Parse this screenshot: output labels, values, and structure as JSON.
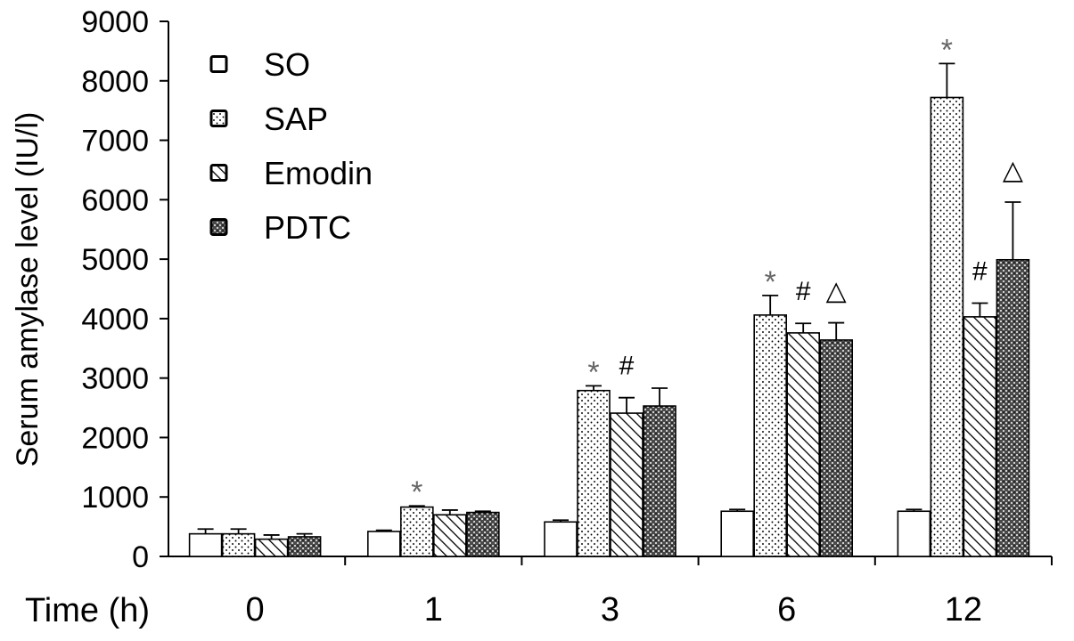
{
  "chart_data": {
    "type": "bar",
    "title": "",
    "xlabel": "Time (h)",
    "ylabel": "Serum amylase level (IU/l)",
    "ylim": [
      0,
      9000
    ],
    "yticks": [
      0,
      1000,
      2000,
      3000,
      4000,
      5000,
      6000,
      7000,
      8000,
      9000
    ],
    "categories": [
      "0",
      "1",
      "3",
      "6",
      "12"
    ],
    "grid": false,
    "legend_position": "top-left",
    "series": [
      {
        "name": "SO",
        "pattern": "plain",
        "values": [
          380,
          420,
          580,
          760,
          760
        ],
        "errors": [
          80,
          20,
          30,
          30,
          30
        ]
      },
      {
        "name": "SAP",
        "pattern": "dots",
        "values": [
          380,
          830,
          2790,
          4060,
          7720
        ],
        "errors": [
          80,
          20,
          80,
          330,
          570
        ]
      },
      {
        "name": "Emodin",
        "pattern": "hatch",
        "values": [
          290,
          700,
          2410,
          3760,
          4030
        ],
        "errors": [
          70,
          80,
          260,
          160,
          230
        ]
      },
      {
        "name": "PDTC",
        "pattern": "crosshatch",
        "values": [
          330,
          740,
          2530,
          3640,
          4990
        ],
        "errors": [
          50,
          20,
          300,
          290,
          970
        ]
      }
    ],
    "annotations": [
      {
        "category": "1",
        "series": "SAP",
        "symbol": "*"
      },
      {
        "category": "3",
        "series": "SAP",
        "symbol": "*"
      },
      {
        "category": "3",
        "series": "Emodin",
        "symbol": "#"
      },
      {
        "category": "6",
        "series": "SAP",
        "symbol": "*"
      },
      {
        "category": "6",
        "series": "Emodin",
        "symbol": "#"
      },
      {
        "category": "6",
        "series": "PDTC",
        "symbol": "△"
      },
      {
        "category": "12",
        "series": "SAP",
        "symbol": "*"
      },
      {
        "category": "12",
        "series": "Emodin",
        "symbol": "#"
      },
      {
        "category": "12",
        "series": "PDTC",
        "symbol": "△"
      }
    ]
  }
}
